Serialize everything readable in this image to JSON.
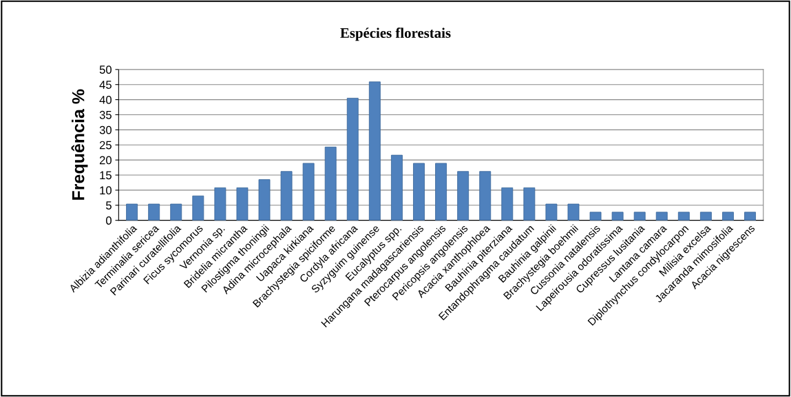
{
  "chart_data": {
    "type": "bar",
    "title": "Espécies florestais",
    "ylabel": "Frequência %",
    "categories": [
      "Albizia adianthifolia",
      "Terminalia sericea",
      "Parinari curatellifolia",
      "Ficus sycomorus",
      "Vernonia sp.",
      "Bridelia micrantha",
      "Pilostigma thoningii",
      "Adina microcephala",
      "Uapaca kirkiana",
      "Brachystegia spiciforme",
      "Cordyla africana",
      "Syzyguim guinense",
      "Eucalyptus spp.",
      "Harungana madagascariensis",
      "Pterocarpus angolensis",
      "Pericopsis angolensis",
      "Acacia xanthophloea",
      "Bauhinia piterziana",
      "Entandophragma caudatum",
      "Bauhinia galpinii",
      "Brachystegia boehmii",
      "Cussonia natalensis",
      "Lapeirousia odoratissima",
      "Cupressus lusitania",
      "Lantana camara",
      "Diplothynchus condylocarpon",
      "Milisia excelsa",
      "Jacaranda mimosifolia",
      "Acacia nigrescens"
    ],
    "values": [
      5.4,
      5.4,
      5.4,
      8.1,
      10.8,
      10.8,
      13.5,
      16.2,
      18.9,
      24.3,
      40.5,
      45.9,
      21.6,
      18.9,
      18.9,
      16.2,
      16.2,
      10.8,
      10.8,
      5.4,
      5.4,
      2.7,
      2.7,
      2.7,
      2.7,
      2.7,
      2.7,
      2.7,
      2.7
    ],
    "color": "#4f81bd",
    "ylim": [
      0,
      50
    ],
    "yticks": [
      0,
      5,
      10,
      15,
      20,
      25,
      30,
      35,
      40,
      45,
      50
    ],
    "grid": "y"
  }
}
